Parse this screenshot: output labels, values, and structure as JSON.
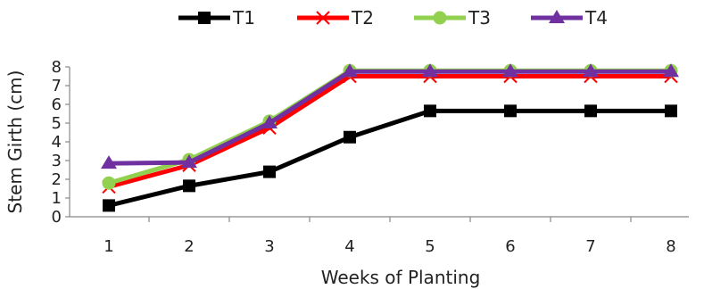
{
  "chart_data": {
    "type": "line",
    "title": "",
    "xlabel": "Weeks of Planting",
    "ylabel": "Stem Girth (cm)",
    "categories": [
      "1",
      "2",
      "3",
      "4",
      "5",
      "6",
      "7",
      "8"
    ],
    "ylim": [
      0,
      8
    ],
    "yticks": [
      "0",
      "1",
      "2",
      "3",
      "4",
      "5",
      "6",
      "7",
      "8"
    ],
    "grid": false,
    "legend_position": "top",
    "series": [
      {
        "name": "T1",
        "color": "#000000",
        "marker": "square",
        "values": [
          0.6,
          1.65,
          2.4,
          4.25,
          5.65,
          5.65,
          5.65,
          5.65
        ]
      },
      {
        "name": "T2",
        "color": "#ff0000",
        "marker": "x",
        "values": [
          1.6,
          2.75,
          4.75,
          7.5,
          7.5,
          7.5,
          7.5,
          7.5
        ]
      },
      {
        "name": "T3",
        "color": "#92d050",
        "marker": "circle",
        "values": [
          1.8,
          3.05,
          5.1,
          7.8,
          7.8,
          7.8,
          7.8,
          7.8
        ]
      },
      {
        "name": "T4",
        "color": "#7030a0",
        "marker": "triangle",
        "values": [
          2.85,
          2.9,
          5.0,
          7.75,
          7.75,
          7.75,
          7.75,
          7.75
        ]
      }
    ]
  }
}
